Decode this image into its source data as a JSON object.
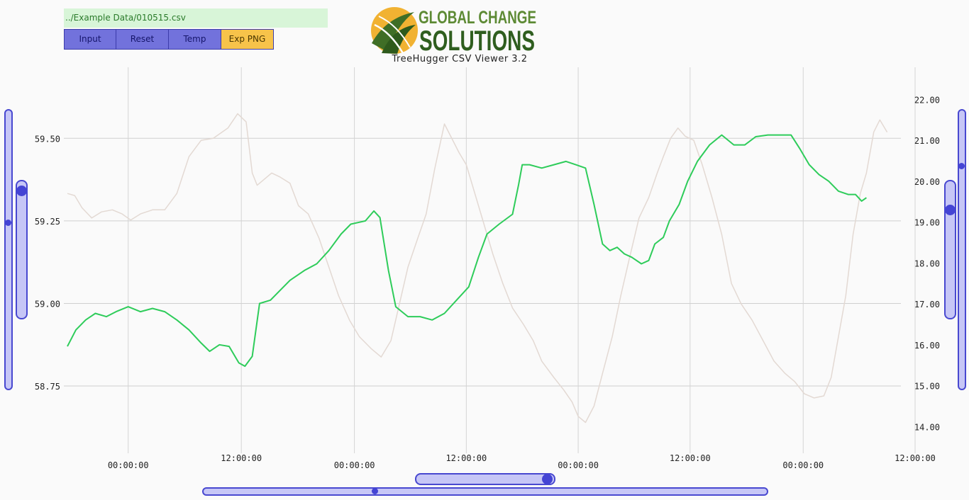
{
  "file_path": "../Example Data/010515.csv",
  "toolbar": {
    "input_label": "Input",
    "reset_label": "Reset",
    "temp_label": "Temp",
    "export_label": "Exp PNG",
    "button_color": "#7272dc",
    "accent_color": "#f7c34a"
  },
  "logo": {
    "line1": "GLOBAL CHANGE",
    "line2": "SOLUTIONS",
    "subtitle": "TreeHugger CSV Viewer 3.2",
    "brand_green": "#4f7a2c",
    "brand_yellow": "#f1b232"
  },
  "chart_data": {
    "type": "line",
    "grid": true,
    "y_left": {
      "range": [
        58.6,
        59.64
      ],
      "ticks": [
        "58.75",
        "59.00",
        "59.25",
        "59.50"
      ]
    },
    "y_right": {
      "range": [
        13.78,
        22.18
      ],
      "ticks": [
        "14.00",
        "15.00",
        "16.00",
        "17.00",
        "18.00",
        "19.00",
        "20.00",
        "21.00",
        "22.00"
      ]
    },
    "x_range": [
      0,
      69
    ],
    "x_ticks": [
      {
        "t": 5,
        "label": "00:00:00"
      },
      {
        "t": 14.3,
        "label": "12:00:00"
      },
      {
        "t": 23.6,
        "label": "00:00:00"
      },
      {
        "t": 32.8,
        "label": "12:00:00"
      },
      {
        "t": 42.0,
        "label": "00:00:00"
      },
      {
        "t": 51.2,
        "label": "12:00:00"
      },
      {
        "t": 60.5,
        "label": "00:00:00"
      },
      {
        "t": 69.7,
        "label": "12:00:00"
      }
    ],
    "series": [
      {
        "axis": "left",
        "color": "#2ecc5a",
        "values": [
          [
            0,
            58.87
          ],
          [
            0.7,
            58.92
          ],
          [
            1.5,
            58.95
          ],
          [
            2.3,
            58.97
          ],
          [
            3.2,
            58.96
          ],
          [
            4,
            58.975
          ],
          [
            5,
            58.99
          ],
          [
            6,
            58.975
          ],
          [
            7,
            58.985
          ],
          [
            8,
            58.975
          ],
          [
            9,
            58.95
          ],
          [
            10,
            58.92
          ],
          [
            11,
            58.88
          ],
          [
            11.7,
            58.855
          ],
          [
            12.5,
            58.875
          ],
          [
            13.3,
            58.87
          ],
          [
            14.1,
            58.82
          ],
          [
            14.6,
            58.81
          ],
          [
            15.2,
            58.84
          ],
          [
            15.8,
            59.0
          ],
          [
            16.7,
            59.01
          ],
          [
            17.5,
            59.04
          ],
          [
            18.3,
            59.07
          ],
          [
            19.5,
            59.1
          ],
          [
            20.5,
            59.12
          ],
          [
            21.5,
            59.16
          ],
          [
            22.5,
            59.21
          ],
          [
            23.3,
            59.24
          ],
          [
            24.5,
            59.25
          ],
          [
            25.2,
            59.28
          ],
          [
            25.7,
            59.26
          ],
          [
            26.4,
            59.1
          ],
          [
            27,
            58.99
          ],
          [
            28,
            58.96
          ],
          [
            29,
            58.96
          ],
          [
            30,
            58.95
          ],
          [
            31,
            58.97
          ],
          [
            32,
            59.01
          ],
          [
            33,
            59.05
          ],
          [
            33.8,
            59.14
          ],
          [
            34.5,
            59.21
          ],
          [
            35.5,
            59.24
          ],
          [
            36.6,
            59.27
          ],
          [
            37.1,
            59.36
          ],
          [
            37.4,
            59.42
          ],
          [
            38,
            59.42
          ],
          [
            39,
            59.41
          ],
          [
            40,
            59.42
          ],
          [
            41,
            59.43
          ],
          [
            41.8,
            59.42
          ],
          [
            42.6,
            59.41
          ],
          [
            43.3,
            59.3
          ],
          [
            44,
            59.18
          ],
          [
            44.6,
            59.16
          ],
          [
            45.2,
            59.17
          ],
          [
            45.8,
            59.15
          ],
          [
            46.4,
            59.14
          ],
          [
            47.2,
            59.12
          ],
          [
            47.8,
            59.13
          ],
          [
            48.3,
            59.18
          ],
          [
            49,
            59.2
          ],
          [
            49.5,
            59.25
          ],
          [
            50.3,
            59.3
          ],
          [
            51,
            59.37
          ],
          [
            51.8,
            59.43
          ],
          [
            52.8,
            59.48
          ],
          [
            53.8,
            59.51
          ],
          [
            54.8,
            59.48
          ],
          [
            55.7,
            59.48
          ],
          [
            56.6,
            59.505
          ],
          [
            57.6,
            59.51
          ],
          [
            58.5,
            59.51
          ],
          [
            59.5,
            59.51
          ],
          [
            60.2,
            59.47
          ],
          [
            61,
            59.42
          ],
          [
            61.8,
            59.39
          ],
          [
            62.6,
            59.37
          ],
          [
            63.4,
            59.34
          ],
          [
            64.2,
            59.33
          ],
          [
            64.8,
            59.33
          ],
          [
            65.3,
            59.31
          ],
          [
            65.7,
            59.32
          ]
        ]
      },
      {
        "axis": "right",
        "color": "#e3d9d3",
        "values": [
          [
            0,
            19.7
          ],
          [
            0.6,
            19.65
          ],
          [
            1.2,
            19.35
          ],
          [
            2,
            19.1
          ],
          [
            2.8,
            19.25
          ],
          [
            3.7,
            19.3
          ],
          [
            4.5,
            19.2
          ],
          [
            5.2,
            19.05
          ],
          [
            6,
            19.2
          ],
          [
            7,
            19.3
          ],
          [
            8,
            19.3
          ],
          [
            9,
            19.7
          ],
          [
            10,
            20.6
          ],
          [
            11,
            21.0
          ],
          [
            12,
            21.05
          ],
          [
            13.2,
            21.3
          ],
          [
            14,
            21.65
          ],
          [
            14.7,
            21.45
          ],
          [
            15.2,
            20.2
          ],
          [
            15.6,
            19.9
          ],
          [
            16.8,
            20.2
          ],
          [
            17.5,
            20.1
          ],
          [
            18.3,
            19.95
          ],
          [
            19,
            19.4
          ],
          [
            19.8,
            19.2
          ],
          [
            20.7,
            18.6
          ],
          [
            21.5,
            17.9
          ],
          [
            22.3,
            17.2
          ],
          [
            23.2,
            16.6
          ],
          [
            24,
            16.2
          ],
          [
            25,
            15.9
          ],
          [
            25.8,
            15.7
          ],
          [
            26.6,
            16.1
          ],
          [
            27.3,
            17.0
          ],
          [
            28,
            17.9
          ],
          [
            28.8,
            18.6
          ],
          [
            29.5,
            19.2
          ],
          [
            30.2,
            20.3
          ],
          [
            31,
            21.4
          ],
          [
            31.6,
            21.05
          ],
          [
            32.2,
            20.7
          ],
          [
            32.8,
            20.4
          ],
          [
            33.5,
            19.7
          ],
          [
            34.2,
            19.0
          ],
          [
            35,
            18.2
          ],
          [
            35.8,
            17.5
          ],
          [
            36.6,
            16.9
          ],
          [
            37.5,
            16.5
          ],
          [
            38.3,
            16.1
          ],
          [
            39,
            15.6
          ],
          [
            40,
            15.2
          ],
          [
            40.8,
            14.9
          ],
          [
            41.5,
            14.6
          ],
          [
            42,
            14.25
          ],
          [
            42.6,
            14.1
          ],
          [
            43.3,
            14.5
          ],
          [
            44,
            15.3
          ],
          [
            44.8,
            16.2
          ],
          [
            45.5,
            17.2
          ],
          [
            46.2,
            18.1
          ],
          [
            47,
            19.1
          ],
          [
            47.8,
            19.6
          ],
          [
            48.5,
            20.2
          ],
          [
            49,
            20.6
          ],
          [
            49.6,
            21.05
          ],
          [
            50.2,
            21.3
          ],
          [
            50.8,
            21.1
          ],
          [
            51.5,
            21.0
          ],
          [
            52.2,
            20.4
          ],
          [
            53,
            19.6
          ],
          [
            53.8,
            18.7
          ],
          [
            54.6,
            17.5
          ],
          [
            55.4,
            17.0
          ],
          [
            56.3,
            16.6
          ],
          [
            57.2,
            16.1
          ],
          [
            58.1,
            15.6
          ],
          [
            59,
            15.3
          ],
          [
            59.8,
            15.1
          ],
          [
            60.6,
            14.8
          ],
          [
            61.4,
            14.7
          ],
          [
            62.2,
            14.75
          ],
          [
            62.8,
            15.2
          ],
          [
            63.4,
            16.2
          ],
          [
            64,
            17.2
          ],
          [
            64.6,
            18.7
          ],
          [
            65.2,
            19.7
          ],
          [
            65.7,
            20.2
          ],
          [
            66.3,
            21.2
          ],
          [
            66.8,
            21.5
          ],
          [
            67.4,
            21.2
          ]
        ]
      }
    ]
  }
}
